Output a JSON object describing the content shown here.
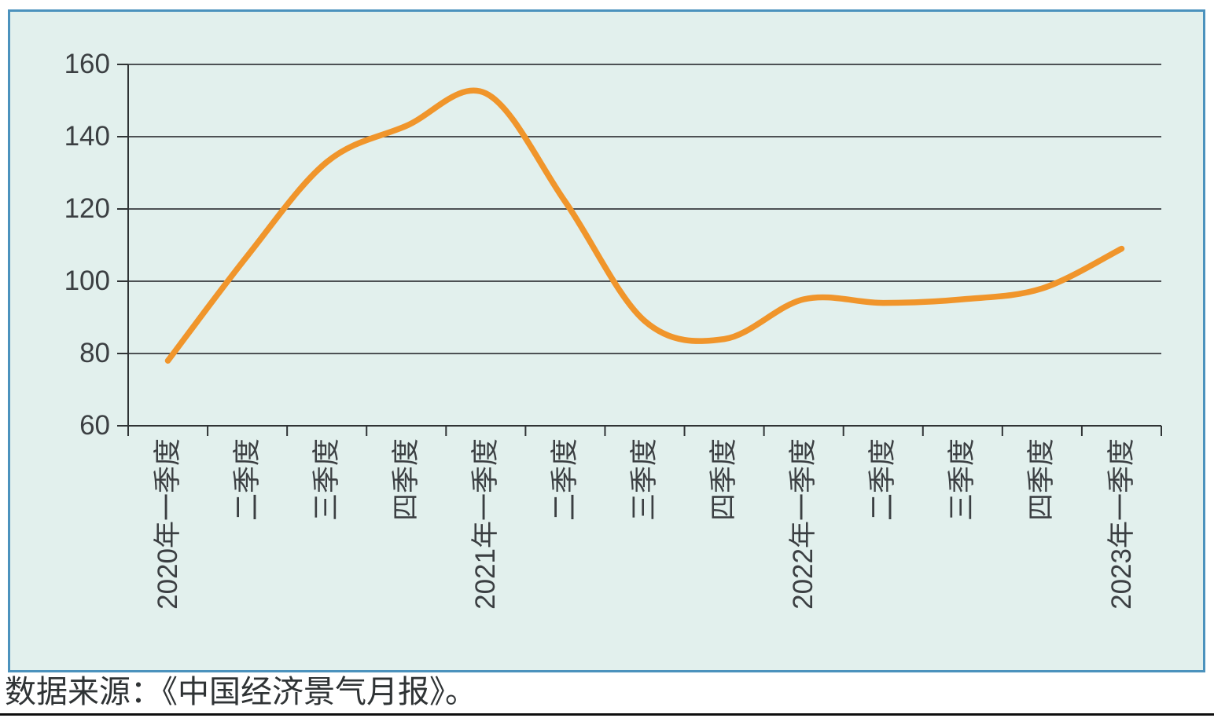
{
  "caption": {
    "text": "数据来源：《中国经济景气月报》。"
  },
  "chart_data": {
    "type": "line",
    "title": "",
    "xlabel": "",
    "ylabel": "",
    "categories": [
      "2020年一季度",
      "二季度",
      "三季度",
      "四季度",
      "2021年一季度",
      "二季度",
      "三季度",
      "四季度",
      "2022年一季度",
      "二季度",
      "三季度",
      "四季度",
      "2023年一季度"
    ],
    "values": [
      78,
      107,
      133,
      143,
      152,
      122,
      89,
      84,
      95,
      94,
      95,
      98,
      109
    ],
    "ylim": [
      60,
      160
    ],
    "yticks": [
      60,
      80,
      100,
      120,
      140,
      160
    ],
    "grid": "horizontal gridlines on, vertical off",
    "legend": "none",
    "x_label_rotation": -90,
    "line_style": "smooth"
  },
  "colors": {
    "panel_bg": "#E2F0ED",
    "panel_border": "#4B92BD",
    "line": "#F0952B",
    "grid": "#4D5154",
    "axis": "#2F3335",
    "text": "#3B3F42"
  }
}
